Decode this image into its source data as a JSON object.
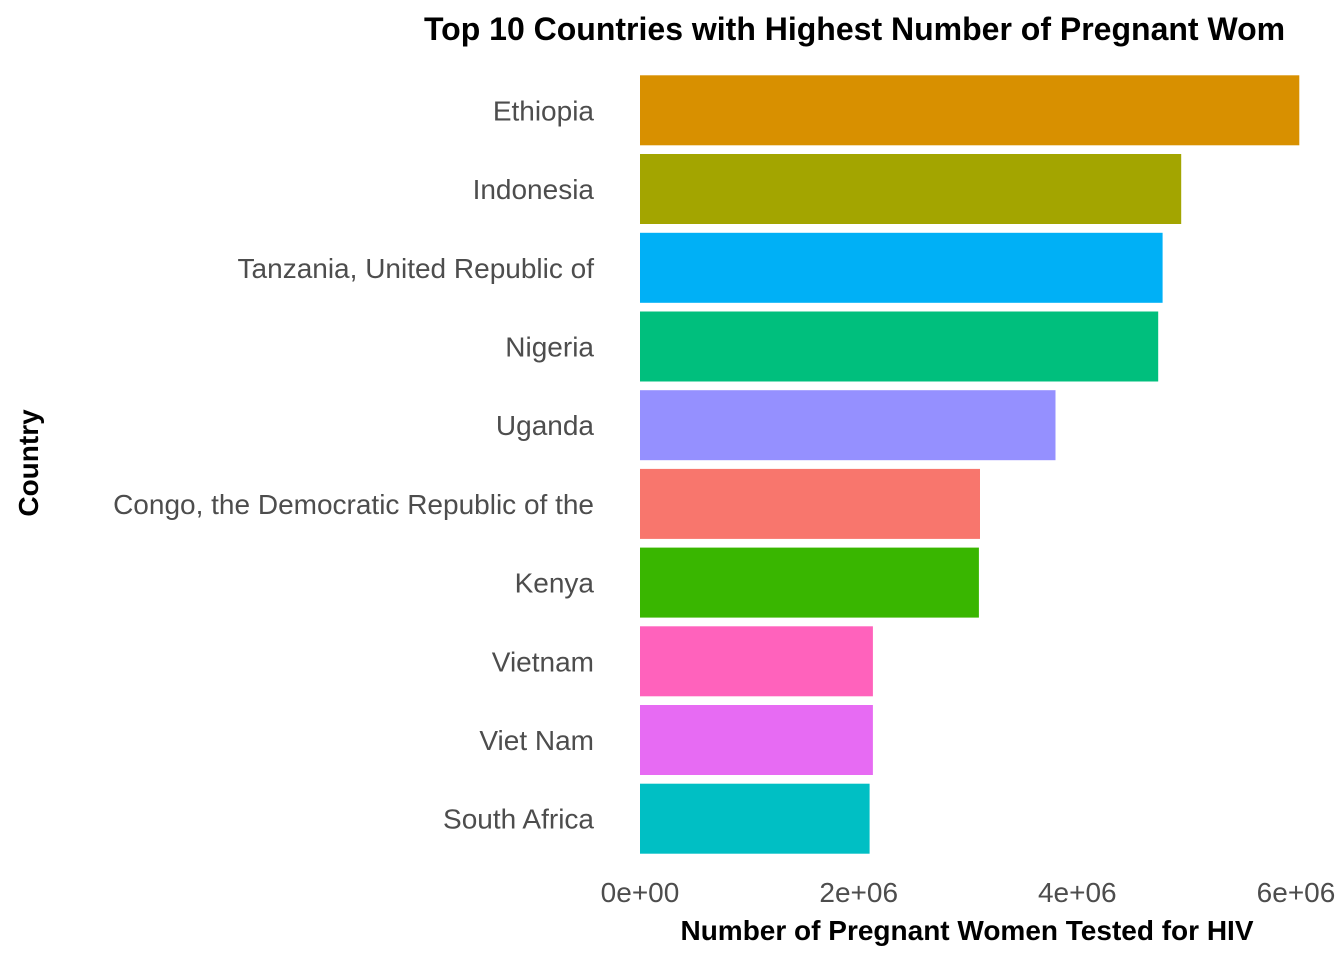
{
  "chart_data": {
    "type": "bar",
    "orientation": "horizontal",
    "title": "Top 10 Countries with Highest Number of Pregnant Wom",
    "xlabel": "Number of Pregnant Women Tested for HIV",
    "ylabel": "Country",
    "xlim": [
      0,
      6000000
    ],
    "x_ticks": [
      0,
      2000000,
      4000000,
      6000000
    ],
    "x_tick_labels": [
      "0e+00",
      "2e+06",
      "4e+06",
      "6e+06"
    ],
    "grid": false,
    "legend": "none",
    "categories": [
      "Ethiopia",
      "Indonesia",
      "Tanzania, United Republic of",
      "Nigeria",
      "Uganda",
      "Congo, the Democratic Republic of the",
      "Kenya",
      "Vietnam",
      "Viet Nam",
      "South Africa"
    ],
    "values": [
      6030000,
      4950000,
      4780000,
      4740000,
      3800000,
      3110000,
      3100000,
      2130000,
      2130000,
      2100000
    ],
    "colors": [
      "#D89000",
      "#A3A500",
      "#00B0F6",
      "#00BF7D",
      "#9590FF",
      "#F8766D",
      "#39B600",
      "#FF62BC",
      "#E76BF3",
      "#00BFC4"
    ]
  }
}
